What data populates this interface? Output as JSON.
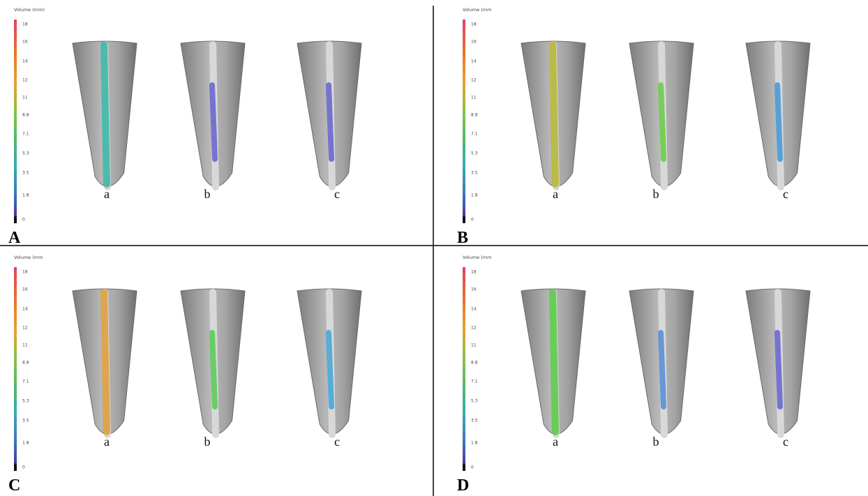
{
  "panels": [
    {
      "letter": "A",
      "scale_title": "Volume (mm)",
      "scale_ticks": [
        "18",
        "16",
        "14",
        "12",
        "11",
        "8.8",
        "7.1",
        "5.3",
        "3.5",
        "1.8",
        "0"
      ],
      "samples": [
        "a",
        "b",
        "c"
      ]
    },
    {
      "letter": "B",
      "scale_title": "Volume (mm",
      "scale_ticks": [
        "18",
        "16",
        "14",
        "12",
        "11",
        "8.8",
        "7.1",
        "5.3",
        "3.5",
        "1.8",
        "0"
      ],
      "samples": [
        "a",
        "b",
        "c"
      ]
    },
    {
      "letter": "C",
      "scale_title": "Volume (mm",
      "scale_ticks": [
        "18",
        "16",
        "14",
        "12",
        "11",
        "8.8",
        "7.1",
        "5.3",
        "3.5",
        "1.8",
        "0"
      ],
      "samples": [
        "a",
        "b",
        "c"
      ]
    },
    {
      "letter": "D",
      "scale_title": "Volume (mm",
      "scale_ticks": [
        "18",
        "16",
        "14",
        "12",
        "11",
        "8.8",
        "7.1",
        "5.3",
        "3.5",
        "1.8",
        "0"
      ],
      "samples": [
        "a",
        "b",
        "c"
      ]
    }
  ]
}
